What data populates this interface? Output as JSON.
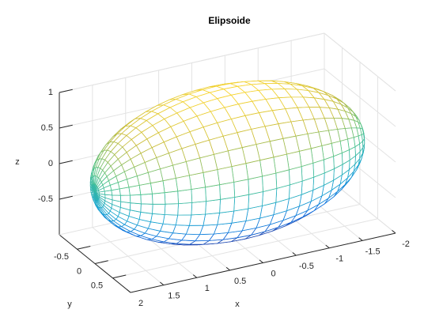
{
  "chart_data": {
    "type": "ellipsoid-mesh",
    "title": "Elipsoide",
    "xlabel": "x",
    "ylabel": "y",
    "zlabel": "z",
    "center": [
      0,
      0,
      0
    ],
    "radii": [
      2,
      1,
      1
    ],
    "mesh_count": 30,
    "xlim": [
      -2,
      2
    ],
    "ylim": [
      -1,
      1
    ],
    "zlim": [
      -1,
      1
    ],
    "xticks": [
      -2,
      -1.5,
      -1,
      -0.5,
      0,
      0.5,
      1,
      1.5,
      2
    ],
    "yticks": [
      -0.5,
      0,
      0.5
    ],
    "zticks": [
      -0.5,
      0,
      0.5,
      1
    ],
    "grid": true,
    "colormap": [
      "#352a87",
      "#0d6ee0",
      "#1aa8d0",
      "#4cc38a",
      "#c6bb3a",
      "#f9d52e"
    ]
  }
}
